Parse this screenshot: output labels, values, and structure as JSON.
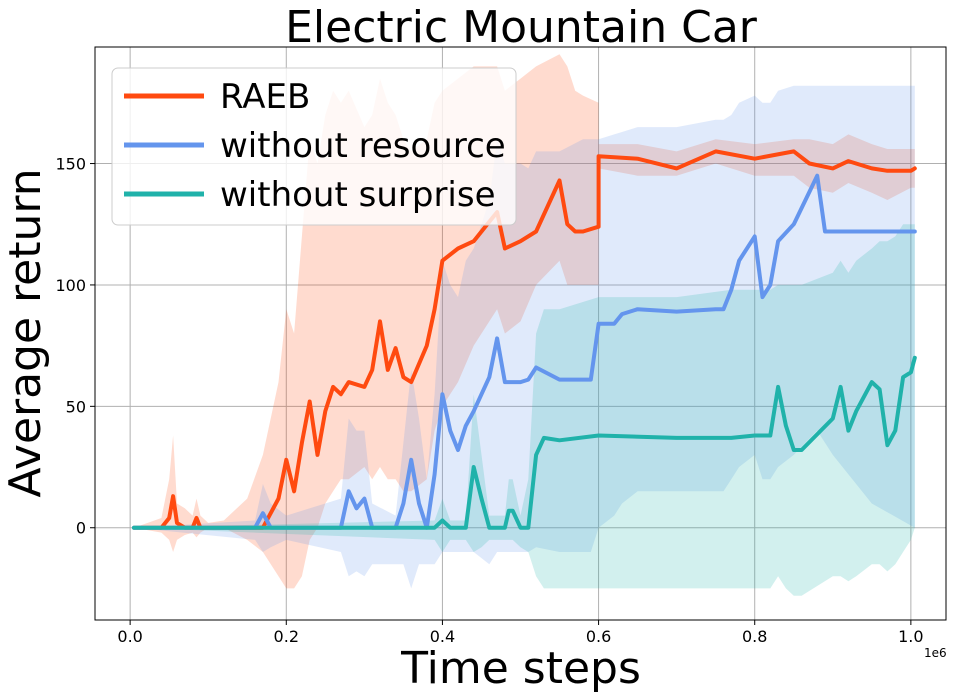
{
  "chart_data": {
    "type": "line",
    "title": "Electric Mountain Car",
    "xlabel": "Time steps",
    "ylabel": "Average return",
    "x_scale_label": "1e6",
    "xlim": [
      -0.045,
      1.045
    ],
    "ylim": [
      -38,
      198
    ],
    "xticks": [
      0.0,
      0.2,
      0.4,
      0.6,
      0.8,
      1.0
    ],
    "xtick_labels": [
      "0.0",
      "0.2",
      "0.4",
      "0.6",
      "0.8",
      "1.0"
    ],
    "yticks": [
      0,
      50,
      100,
      150
    ],
    "ytick_labels": [
      "0",
      "50",
      "100",
      "150"
    ],
    "grid": true,
    "legend_position": "upper-left",
    "series": [
      {
        "name": "RAEB",
        "color": "#ff4a10",
        "x": [
          0.005,
          0.04,
          0.05,
          0.055,
          0.06,
          0.07,
          0.08,
          0.085,
          0.09,
          0.1,
          0.12,
          0.15,
          0.17,
          0.19,
          0.2,
          0.21,
          0.22,
          0.23,
          0.24,
          0.25,
          0.26,
          0.27,
          0.28,
          0.3,
          0.31,
          0.32,
          0.33,
          0.34,
          0.35,
          0.36,
          0.38,
          0.39,
          0.4,
          0.42,
          0.44,
          0.46,
          0.47,
          0.48,
          0.5,
          0.52,
          0.55,
          0.56,
          0.57,
          0.58,
          0.6,
          0.6,
          0.65,
          0.7,
          0.75,
          0.8,
          0.85,
          0.87,
          0.9,
          0.92,
          0.95,
          0.97,
          1.0,
          1.005
        ],
        "y": [
          0,
          0,
          4,
          13,
          2,
          0,
          0,
          4,
          0,
          0,
          0,
          0,
          0,
          12,
          28,
          15,
          35,
          52,
          30,
          48,
          58,
          55,
          60,
          58,
          65,
          85,
          65,
          74,
          62,
          60,
          75,
          90,
          110,
          115,
          118,
          126,
          130,
          115,
          118,
          122,
          143,
          125,
          122,
          122,
          124,
          153,
          152,
          148,
          155,
          152,
          155,
          150,
          148,
          151,
          148,
          147,
          147,
          148
        ],
        "lower": [
          0,
          -2,
          -5,
          -10,
          -5,
          -3,
          -2,
          -4,
          -2,
          0,
          0,
          -5,
          -10,
          -20,
          -25,
          -25,
          -20,
          -5,
          0,
          10,
          15,
          20,
          20,
          25,
          20,
          25,
          20,
          20,
          15,
          15,
          20,
          40,
          50,
          60,
          75,
          85,
          90,
          80,
          85,
          100,
          110,
          100,
          100,
          100,
          100,
          148,
          145,
          145,
          150,
          145,
          145,
          140,
          138,
          142,
          138,
          135,
          140,
          140
        ],
        "upper": [
          0,
          4,
          20,
          38,
          10,
          8,
          5,
          12,
          5,
          2,
          3,
          12,
          30,
          60,
          90,
          80,
          120,
          160,
          150,
          170,
          180,
          175,
          180,
          165,
          170,
          185,
          175,
          170,
          160,
          155,
          160,
          175,
          180,
          185,
          190,
          190,
          190,
          180,
          185,
          190,
          195,
          190,
          180,
          178,
          175,
          158,
          158,
          155,
          160,
          158,
          160,
          160,
          158,
          162,
          158,
          156,
          156,
          156
        ]
      },
      {
        "name": "without resource",
        "color": "#6495ed",
        "x": [
          0.005,
          0.16,
          0.17,
          0.18,
          0.2,
          0.27,
          0.28,
          0.29,
          0.3,
          0.31,
          0.34,
          0.35,
          0.36,
          0.37,
          0.38,
          0.39,
          0.4,
          0.41,
          0.42,
          0.43,
          0.44,
          0.46,
          0.47,
          0.48,
          0.5,
          0.51,
          0.52,
          0.55,
          0.58,
          0.59,
          0.6,
          0.62,
          0.63,
          0.65,
          0.7,
          0.75,
          0.76,
          0.77,
          0.78,
          0.8,
          0.81,
          0.82,
          0.83,
          0.85,
          0.88,
          0.89,
          0.9,
          0.95,
          1.005
        ],
        "y": [
          0,
          0,
          6,
          0,
          0,
          0,
          15,
          8,
          12,
          0,
          0,
          10,
          28,
          10,
          0,
          22,
          55,
          40,
          32,
          42,
          48,
          62,
          78,
          60,
          60,
          61,
          66,
          61,
          61,
          61,
          84,
          84,
          88,
          90,
          89,
          90,
          90,
          98,
          110,
          120,
          95,
          100,
          118,
          125,
          145,
          122,
          122,
          122,
          122
        ],
        "lower": [
          0,
          -5,
          -10,
          -8,
          -5,
          -10,
          -20,
          -18,
          -20,
          -15,
          -15,
          -15,
          -25,
          -15,
          -15,
          -15,
          -10,
          -10,
          -10,
          -10,
          -10,
          -15,
          -10,
          -10,
          -10,
          -10,
          -8,
          -10,
          -10,
          -10,
          0,
          5,
          10,
          15,
          15,
          15,
          15,
          20,
          25,
          30,
          20,
          20,
          25,
          30,
          40,
          35,
          30,
          10,
          0
        ],
        "upper": [
          0,
          3,
          18,
          10,
          5,
          12,
          45,
          40,
          40,
          10,
          5,
          35,
          65,
          45,
          20,
          55,
          110,
          100,
          95,
          110,
          115,
          135,
          160,
          150,
          150,
          148,
          155,
          155,
          160,
          160,
          160,
          162,
          163,
          165,
          165,
          168,
          168,
          170,
          175,
          178,
          175,
          175,
          180,
          182,
          182,
          182,
          182,
          182,
          182
        ]
      },
      {
        "name": "without surprise",
        "color": "#20b2aa",
        "x": [
          0.005,
          0.39,
          0.4,
          0.41,
          0.43,
          0.44,
          0.45,
          0.46,
          0.48,
          0.485,
          0.49,
          0.5,
          0.51,
          0.52,
          0.53,
          0.55,
          0.6,
          0.7,
          0.77,
          0.8,
          0.82,
          0.83,
          0.84,
          0.85,
          0.86,
          0.9,
          0.91,
          0.92,
          0.93,
          0.95,
          0.96,
          0.97,
          0.98,
          0.99,
          1.0,
          1.005
        ],
        "y": [
          0,
          0,
          3,
          0,
          0,
          25,
          12,
          0,
          0,
          7,
          7,
          0,
          0,
          30,
          37,
          36,
          38,
          37,
          37,
          38,
          38,
          58,
          42,
          32,
          32,
          45,
          58,
          40,
          48,
          60,
          57,
          34,
          40,
          62,
          64,
          70
        ],
        "lower": [
          0,
          -5,
          -10,
          -5,
          -5,
          -10,
          -8,
          -5,
          -5,
          -5,
          -5,
          -8,
          -10,
          -20,
          -25,
          -25,
          -25,
          -25,
          -25,
          -25,
          -25,
          -20,
          -25,
          -28,
          -28,
          -20,
          -20,
          -22,
          -20,
          -15,
          -15,
          -18,
          -15,
          -10,
          -5,
          0
        ],
        "upper": [
          0,
          3,
          12,
          3,
          3,
          55,
          30,
          5,
          5,
          20,
          20,
          5,
          20,
          80,
          90,
          90,
          95,
          95,
          98,
          98,
          98,
          100,
          100,
          100,
          100,
          105,
          110,
          105,
          110,
          115,
          118,
          118,
          120,
          125,
          125,
          125
        ]
      }
    ]
  }
}
